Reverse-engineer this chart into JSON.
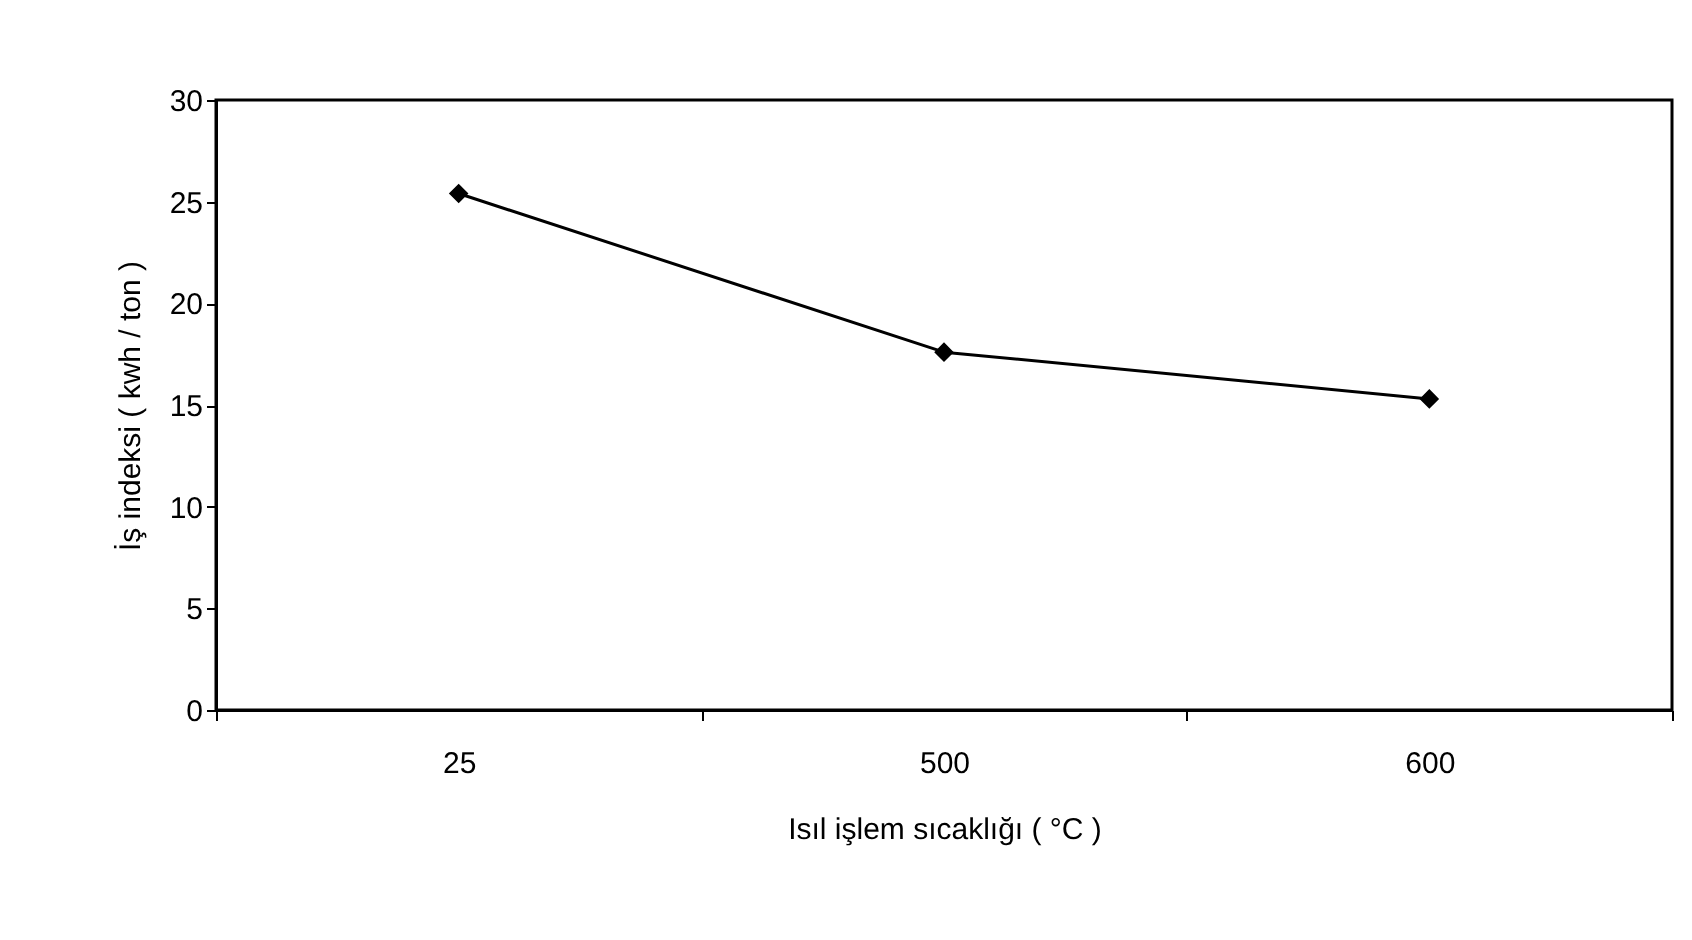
{
  "chart_data": {
    "type": "line",
    "xlabel": "Isıl işlem sıcaklığı ( °C )",
    "ylabel": "İş indeksi ( kwh / ton )",
    "categories": [
      "25",
      "500",
      "600"
    ],
    "series": [
      {
        "color": "#000000",
        "values": [
          25.4,
          17.6,
          15.3
        ]
      }
    ],
    "ylim": [
      0,
      30
    ],
    "yticks": [
      0,
      5,
      10,
      15,
      20,
      25,
      30
    ],
    "grid": false,
    "legend": false,
    "marker": "diamond",
    "line_style": "solid"
  }
}
